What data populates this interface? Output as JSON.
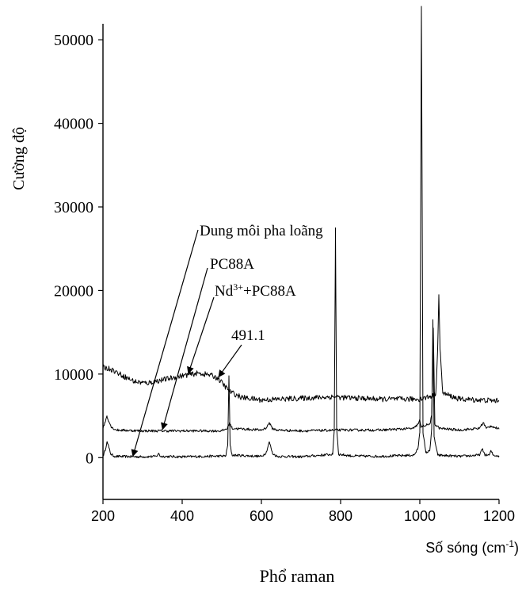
{
  "chart_data": {
    "type": "line",
    "title": "",
    "caption": "Phổ raman",
    "ylabel": "Cường độ",
    "xlabel_main": "Số sóng (cm",
    "xlabel_sup": "-1",
    "xlabel_end": ")",
    "xlim": [
      200,
      1200
    ],
    "ylim": [
      -5000,
      54000
    ],
    "x_ticks": [
      "200",
      "400",
      "600",
      "800",
      "1000",
      "1200"
    ],
    "y_ticks": [
      "0",
      "10000",
      "20000",
      "30000",
      "40000",
      "50000"
    ],
    "grid": false,
    "series": [
      {
        "id": "dung-moi",
        "baseline": 0,
        "noise": 150,
        "points": [
          [
            200,
            200
          ],
          [
            205,
            800
          ],
          [
            210,
            1900
          ],
          [
            215,
            1200
          ],
          [
            220,
            400
          ],
          [
            230,
            150
          ],
          [
            300,
            100
          ],
          [
            335,
            150
          ],
          [
            340,
            500
          ],
          [
            345,
            150
          ],
          [
            400,
            100
          ],
          [
            510,
            200
          ],
          [
            515,
            1500
          ],
          [
            518,
            9800
          ],
          [
            521,
            1500
          ],
          [
            526,
            300
          ],
          [
            600,
            150
          ],
          [
            612,
            600
          ],
          [
            620,
            1900
          ],
          [
            628,
            500
          ],
          [
            640,
            150
          ],
          [
            700,
            100
          ],
          [
            780,
            400
          ],
          [
            784,
            3500
          ],
          [
            787,
            27500
          ],
          [
            790,
            3500
          ],
          [
            795,
            400
          ],
          [
            830,
            200
          ],
          [
            900,
            150
          ],
          [
            985,
            300
          ],
          [
            995,
            1000
          ],
          [
            1000,
            3000
          ],
          [
            1004,
            54000
          ],
          [
            1008,
            3000
          ],
          [
            1015,
            600
          ],
          [
            1025,
            800
          ],
          [
            1030,
            3500
          ],
          [
            1033,
            16500
          ],
          [
            1036,
            2500
          ],
          [
            1045,
            300
          ],
          [
            1100,
            150
          ],
          [
            1150,
            300
          ],
          [
            1158,
            1000
          ],
          [
            1165,
            300
          ],
          [
            1175,
            300
          ],
          [
            1180,
            800
          ],
          [
            1185,
            300
          ],
          [
            1200,
            200
          ]
        ]
      },
      {
        "id": "pc88a",
        "baseline": 3200,
        "noise": 150,
        "points": [
          [
            200,
            3500
          ],
          [
            205,
            4200
          ],
          [
            210,
            5000
          ],
          [
            215,
            4300
          ],
          [
            222,
            3600
          ],
          [
            235,
            3300
          ],
          [
            300,
            3200
          ],
          [
            400,
            3200
          ],
          [
            500,
            3200
          ],
          [
            514,
            3500
          ],
          [
            520,
            4200
          ],
          [
            526,
            3500
          ],
          [
            600,
            3300
          ],
          [
            613,
            3600
          ],
          [
            620,
            4200
          ],
          [
            627,
            3500
          ],
          [
            640,
            3300
          ],
          [
            700,
            3200
          ],
          [
            800,
            3300
          ],
          [
            900,
            3300
          ],
          [
            985,
            3500
          ],
          [
            995,
            4000
          ],
          [
            1000,
            4500
          ],
          [
            1003,
            3600
          ],
          [
            1008,
            3800
          ],
          [
            1025,
            4000
          ],
          [
            1030,
            5000
          ],
          [
            1034,
            15500
          ],
          [
            1038,
            4000
          ],
          [
            1050,
            3500
          ],
          [
            1100,
            3300
          ],
          [
            1150,
            3500
          ],
          [
            1160,
            4200
          ],
          [
            1168,
            3500
          ],
          [
            1180,
            3800
          ],
          [
            1200,
            3400
          ]
        ]
      },
      {
        "id": "nd-pc88a",
        "baseline": 7000,
        "noise": 320,
        "points": [
          [
            200,
            10800
          ],
          [
            220,
            10600
          ],
          [
            250,
            9800
          ],
          [
            280,
            9100
          ],
          [
            310,
            8900
          ],
          [
            350,
            9300
          ],
          [
            400,
            9800
          ],
          [
            440,
            10100
          ],
          [
            470,
            9900
          ],
          [
            490,
            9500
          ],
          [
            505,
            8700
          ],
          [
            520,
            7900
          ],
          [
            550,
            7200
          ],
          [
            600,
            6900
          ],
          [
            700,
            7100
          ],
          [
            790,
            7300
          ],
          [
            800,
            7200
          ],
          [
            900,
            7000
          ],
          [
            1000,
            7000
          ],
          [
            1040,
            7500
          ],
          [
            1045,
            13000
          ],
          [
            1048,
            19500
          ],
          [
            1051,
            13000
          ],
          [
            1058,
            7700
          ],
          [
            1100,
            7000
          ],
          [
            1200,
            6800
          ]
        ]
      }
    ],
    "annotations": [
      {
        "label": "Dung môi pha loãng",
        "point_at": [
          275,
          100
        ]
      },
      {
        "label": "PC88A",
        "point_at": [
          350,
          3300
        ]
      },
      {
        "label": "Nd",
        "sup": "3+",
        "label_after": "+PC88A",
        "point_at": [
          415,
          10000
        ]
      },
      {
        "label": "491.1",
        "point_at": [
          491,
          9600
        ]
      }
    ]
  }
}
